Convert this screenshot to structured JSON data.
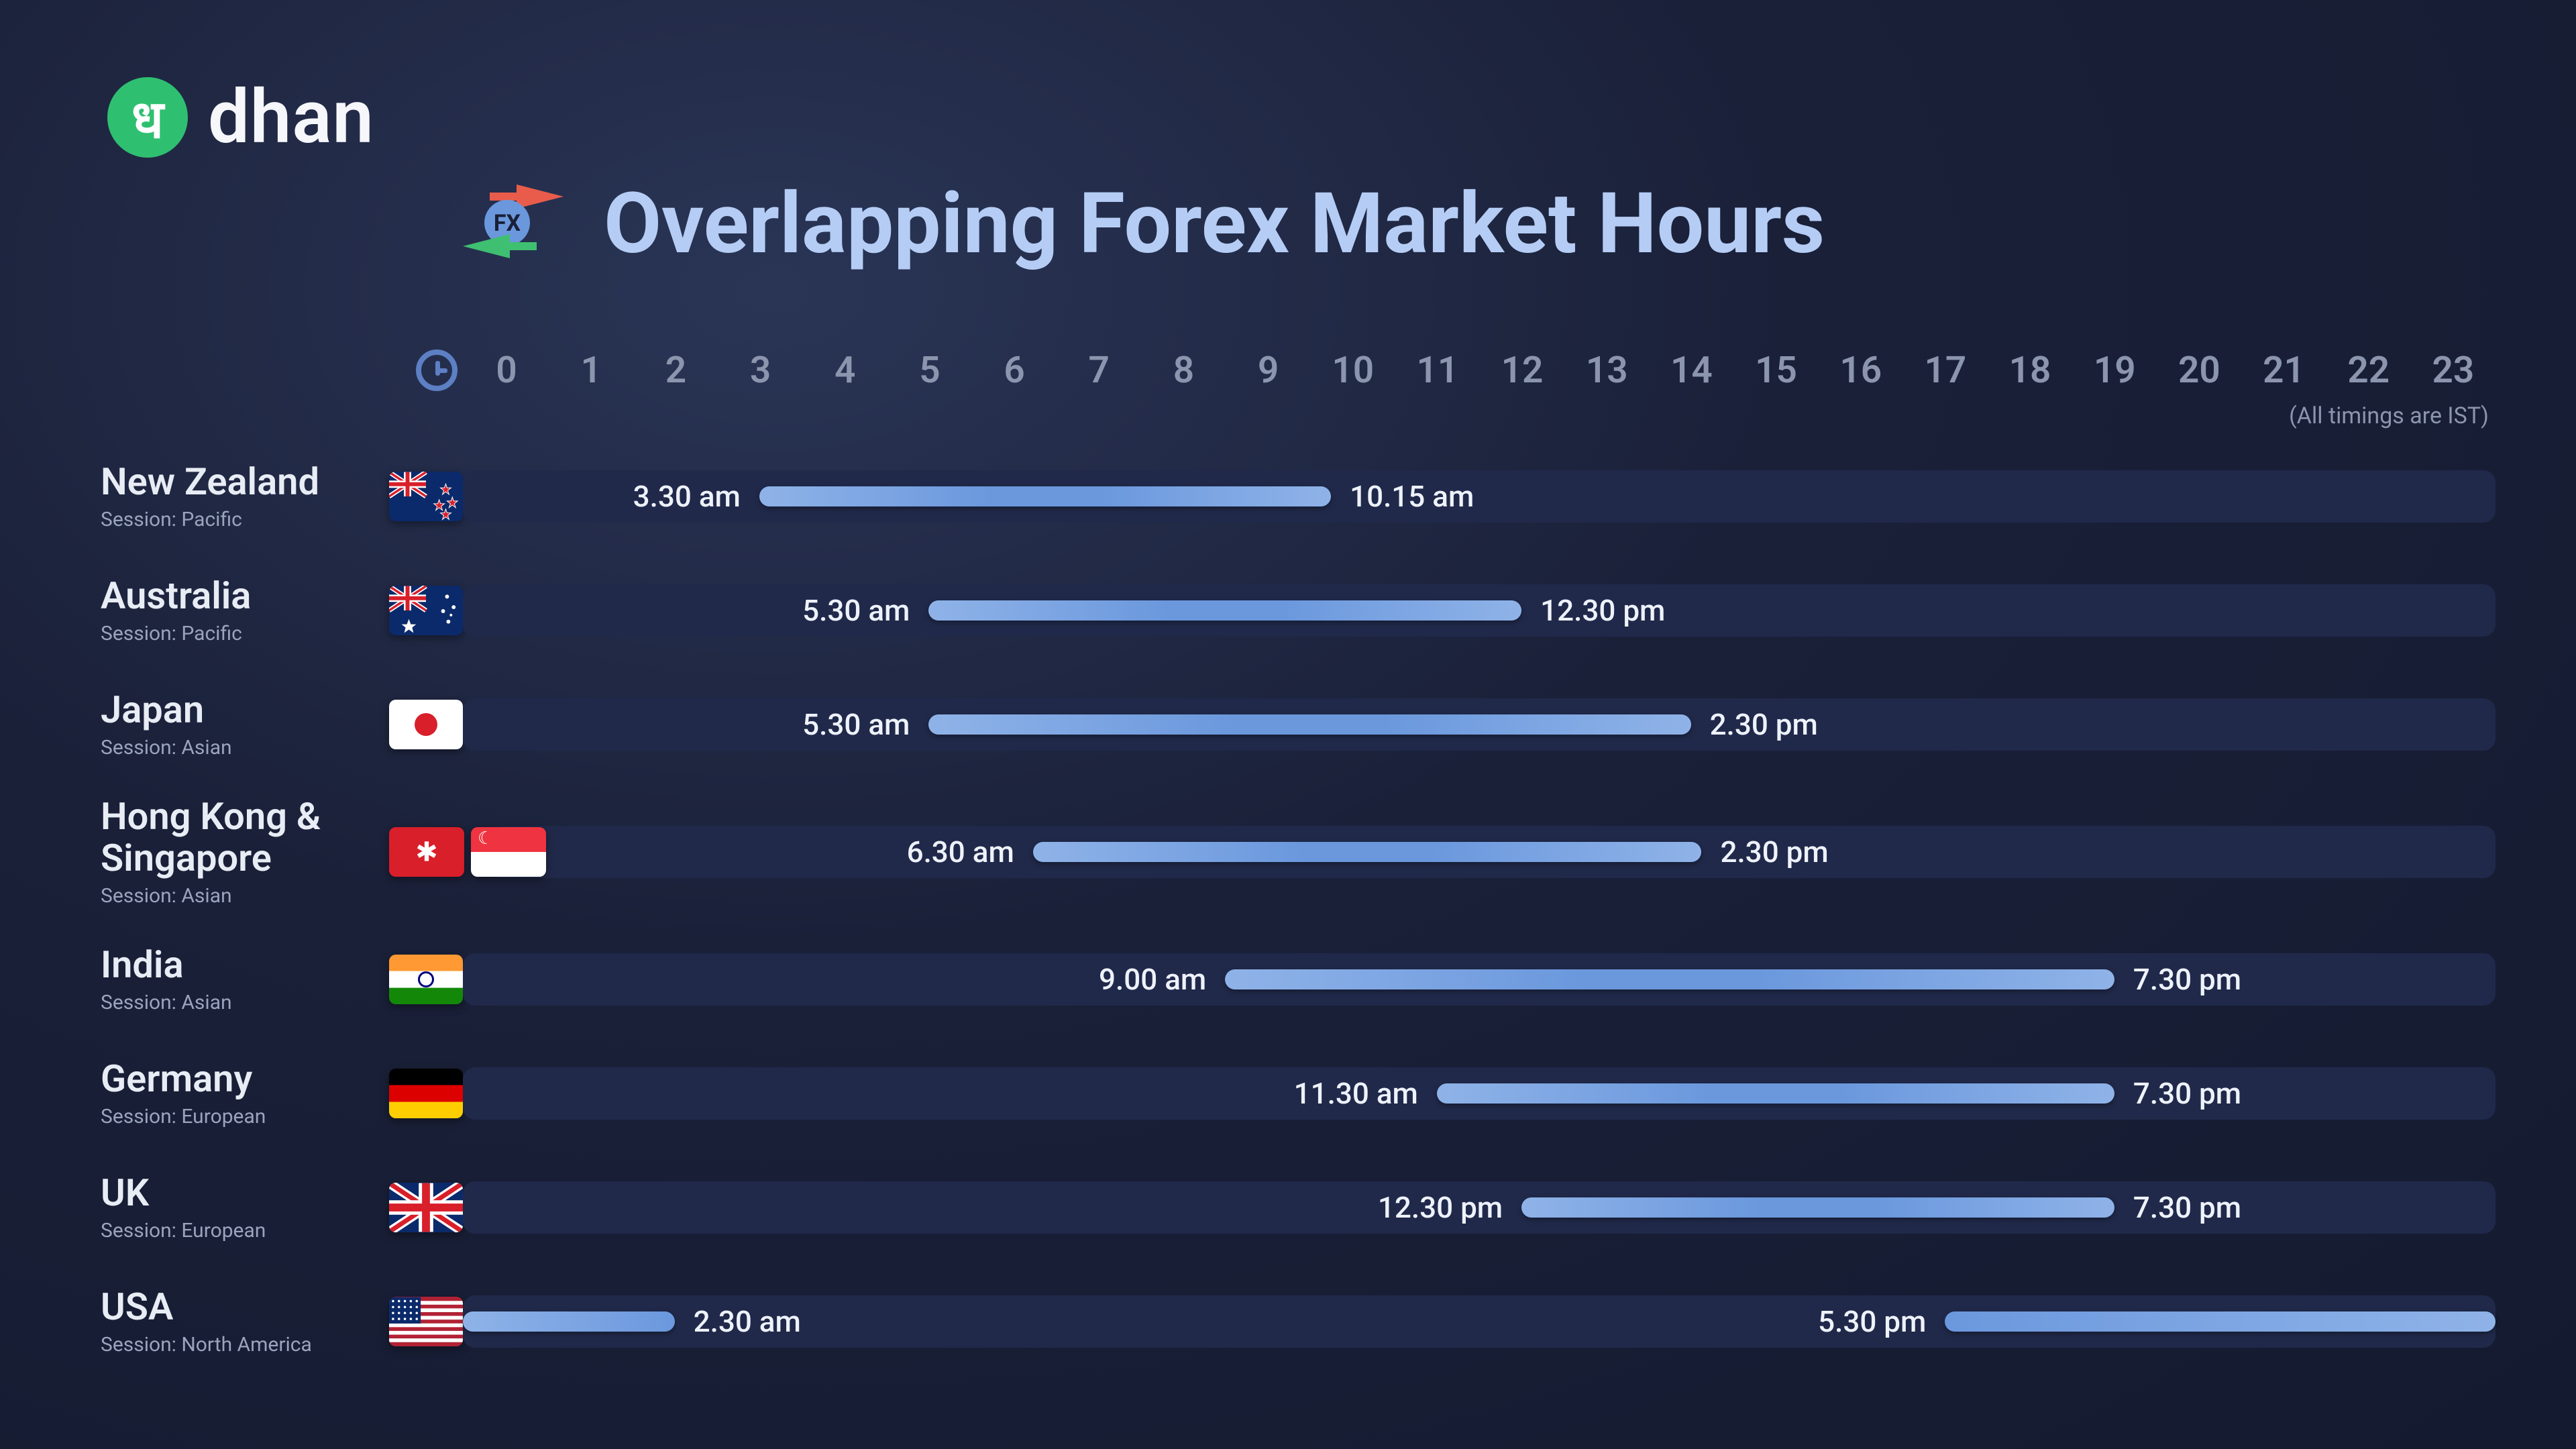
{
  "brand": {
    "name": "dhan",
    "glyph": "ध",
    "badge_color": "#2fbf71"
  },
  "title": "Overlapping Forex Market Hours",
  "title_color": "#b5cdf5",
  "tz_note": "(All timings are IST)",
  "axis": {
    "start": 0,
    "end": 24,
    "tick_step": 1,
    "tick_color": "#8b95ad",
    "tick_fontsize": 55
  },
  "track_bg": "#20294a",
  "bar_color": "#6b98dd",
  "bar_highlight": "#8fb3e8",
  "background_colors": [
    "#2a3556",
    "#1a2038",
    "#141a2f"
  ],
  "session_prefix": "Session: ",
  "rows": [
    {
      "country": "New Zealand",
      "session": "Pacific",
      "flags": [
        "nz"
      ],
      "start_h": 3.5,
      "end_h": 10.25,
      "start_label": "3.30 am",
      "end_label": "10.15 am"
    },
    {
      "country": "Australia",
      "session": "Pacific",
      "flags": [
        "au"
      ],
      "start_h": 5.5,
      "end_h": 12.5,
      "start_label": "5.30 am",
      "end_label": "12.30 pm"
    },
    {
      "country": "Japan",
      "session": "Asian",
      "flags": [
        "jp"
      ],
      "start_h": 5.5,
      "end_h": 14.5,
      "start_label": "5.30 am",
      "end_label": "2.30 pm"
    },
    {
      "country": "Hong Kong & Singapore",
      "session": "Asian",
      "flags": [
        "hk",
        "sg"
      ],
      "tall": true,
      "start_h": 6.5,
      "end_h": 14.5,
      "start_label": "6.30 am",
      "end_label": "2.30 pm"
    },
    {
      "country": "India",
      "session": "Asian",
      "flags": [
        "in"
      ],
      "start_h": 9.0,
      "end_h": 19.5,
      "start_label": "9.00 am",
      "end_label": "7.30 pm"
    },
    {
      "country": "Germany",
      "session": "European",
      "flags": [
        "de"
      ],
      "start_h": 11.5,
      "end_h": 19.5,
      "start_label": "11.30 am",
      "end_label": "7.30 pm"
    },
    {
      "country": "UK",
      "session": "European",
      "flags": [
        "uk"
      ],
      "start_h": 12.5,
      "end_h": 19.5,
      "start_label": "12.30 pm",
      "end_label": "7.30 pm"
    },
    {
      "country": "USA",
      "session": "North America",
      "flags": [
        "us"
      ],
      "wrap": true,
      "seg1_start_h": 0,
      "seg1_end_h": 2.5,
      "seg1_end_label": "2.30 am",
      "seg2_start_h": 17.5,
      "seg2_end_h": 24,
      "seg2_start_label": "5.30 pm"
    }
  ]
}
